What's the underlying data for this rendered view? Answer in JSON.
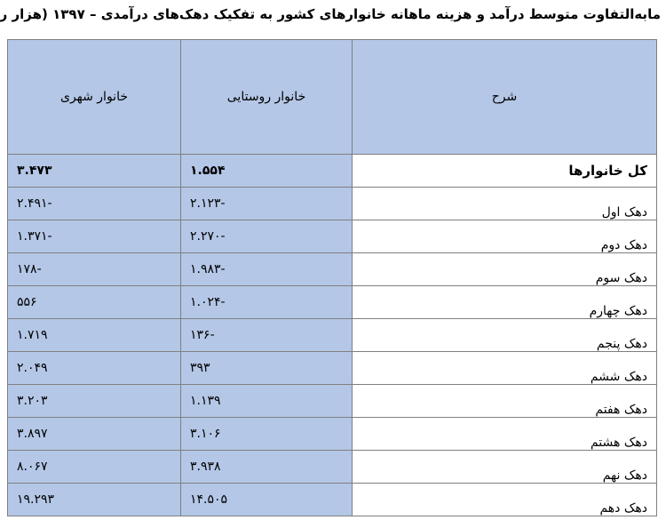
{
  "title": "مابه‌التفاوت متوسط درآمد و هزینه ماهانه خانوارهای کشور به تفکیک دهک‌های درآمدی – ۱۳۹۷ (هزار ریال)",
  "headers": {
    "urban": "خانوار شهری",
    "rural": "خانوار روستایی",
    "description": "شرح"
  },
  "rows": [
    {
      "label": "کل خانوارها",
      "rural": "۱.۵۵۴",
      "urban": "۳.۴۷۳"
    },
    {
      "label": "دهک اول",
      "rural": "-۲.۱۲۳",
      "urban": "-۲.۴۹۱"
    },
    {
      "label": "دهک دوم",
      "rural": "-۲.۲۷۰",
      "urban": "-۱.۳۷۱"
    },
    {
      "label": "دهک سوم",
      "rural": "-۱.۹۸۳",
      "urban": "-۱۷۸"
    },
    {
      "label": "دهک چهارم",
      "rural": "-۱.۰۲۴",
      "urban": "۵۵۶"
    },
    {
      "label": "دهک پنجم",
      "rural": "-۱۳۶",
      "urban": "۱.۷۱۹"
    },
    {
      "label": "دهک ششم",
      "rural": "۳۹۳",
      "urban": "۲.۰۴۹"
    },
    {
      "label": "دهک هفتم",
      "rural": "۱.۱۳۹",
      "urban": "۳.۲۰۳"
    },
    {
      "label": "دهک هشتم",
      "rural": "۳.۱۰۶",
      "urban": "۳.۸۹۷"
    },
    {
      "label": "دهک نهم",
      "rural": "۳.۹۳۸",
      "urban": "۸.۰۶۷"
    },
    {
      "label": "دهک دهم",
      "rural": "۱۴.۵۰۵",
      "urban": "۱۹.۲۹۳"
    }
  ],
  "colors": {
    "header_fill": "#b4c7e7",
    "value_fill": "#b4c7e7",
    "border": "#7f7f7f"
  }
}
